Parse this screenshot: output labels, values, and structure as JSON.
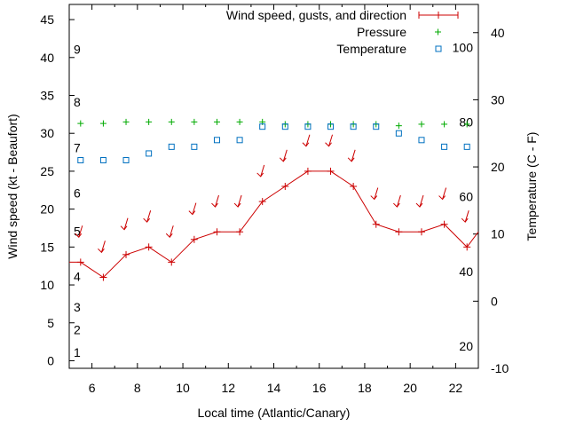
{
  "colors": {
    "wind": "#cc0000",
    "pressure": "#00aa00",
    "temperature": "#0070c0",
    "axis": "#000000"
  },
  "chart_data": {
    "type": "line",
    "xlabel": "Local time (Atlantic/Canary)",
    "ylabel": "Wind speed (kt - Beaufort)",
    "y2label": "Temperature (C - F)",
    "xlim": [
      5,
      23
    ],
    "ylim": [
      -1,
      47
    ],
    "y2lim": [
      -10,
      44.2
    ],
    "x_ticks": [
      6,
      8,
      10,
      12,
      14,
      16,
      18,
      20,
      22
    ],
    "y_ticks": [
      0,
      5,
      10,
      15,
      20,
      25,
      30,
      35,
      40,
      45
    ],
    "y2_ticks": [
      -10,
      0,
      10,
      20,
      30,
      40
    ],
    "beaufort_labels": [
      {
        "label": "1",
        "y": 1.1
      },
      {
        "label": "2",
        "y": 4.1
      },
      {
        "label": "3",
        "y": 7.1
      },
      {
        "label": "4",
        "y": 11.1
      },
      {
        "label": "5",
        "y": 17.1
      },
      {
        "label": "6",
        "y": 22.1
      },
      {
        "label": "7",
        "y": 28.1
      },
      {
        "label": "8",
        "y": 34.1
      },
      {
        "label": "9",
        "y": 41.1
      }
    ],
    "fahrenheit_labels": [
      {
        "label": "20",
        "y2": -6.7
      },
      {
        "label": "40",
        "y2": 4.4
      },
      {
        "label": "60",
        "y2": 15.6
      },
      {
        "label": "80",
        "y2": 26.7
      },
      {
        "label": "100",
        "y2": 37.8
      }
    ],
    "legend": [
      "Wind speed, gusts, and direction",
      "Pressure",
      "Temperature"
    ],
    "legend_position": "top-right",
    "series": [
      {
        "name": "Wind speed, gusts, and direction",
        "type": "line",
        "x": [
          5,
          5.5,
          6.5,
          7.5,
          8.5,
          9.5,
          10.5,
          11.5,
          12.5,
          13.5,
          14.5,
          15.5,
          16.5,
          17.5,
          18.5,
          19.5,
          20.5,
          21.5,
          22.5,
          23
        ],
        "values": [
          13,
          13,
          11,
          14,
          15,
          13,
          16,
          17,
          17,
          21,
          23,
          25,
          25,
          23,
          18,
          17,
          17,
          18,
          15,
          17
        ]
      },
      {
        "name": "Wind direction",
        "type": "arrows",
        "x": [
          5.5,
          6.5,
          7.5,
          8.5,
          9.5,
          10.5,
          11.5,
          12.5,
          13.5,
          14.5,
          15.5,
          16.5,
          17.5,
          18.5,
          19.5,
          20.5,
          21.5,
          22.5
        ],
        "values": [
          17,
          15,
          18,
          19,
          17,
          20,
          21,
          21,
          25,
          27,
          29,
          29,
          27,
          22,
          21,
          21,
          22,
          19
        ]
      },
      {
        "name": "Pressure",
        "type": "points",
        "x": [
          5.5,
          6.5,
          7.5,
          8.5,
          9.5,
          10.5,
          11.5,
          12.5,
          13.5,
          14.5,
          15.5,
          16.5,
          17.5,
          18.5,
          19.5,
          20.5,
          21.5,
          22.5
        ],
        "values": [
          31.3,
          31.3,
          31.5,
          31.5,
          31.5,
          31.5,
          31.5,
          31.5,
          31.5,
          31.2,
          31.2,
          31.2,
          31.2,
          31.2,
          31.0,
          31.2,
          31.2,
          31.2
        ]
      },
      {
        "name": "Temperature",
        "type": "points",
        "axis": "y2",
        "x": [
          5.5,
          6.5,
          7.5,
          8.5,
          9.5,
          10.5,
          11.5,
          12.5,
          13.5,
          14.5,
          15.5,
          16.5,
          17.5,
          18.5,
          19.5,
          20.5,
          21.5,
          22.5
        ],
        "values": [
          21,
          21,
          21,
          22,
          23,
          23,
          24,
          24,
          26,
          26,
          26,
          26,
          26,
          26,
          25,
          24,
          23,
          23
        ]
      }
    ]
  }
}
